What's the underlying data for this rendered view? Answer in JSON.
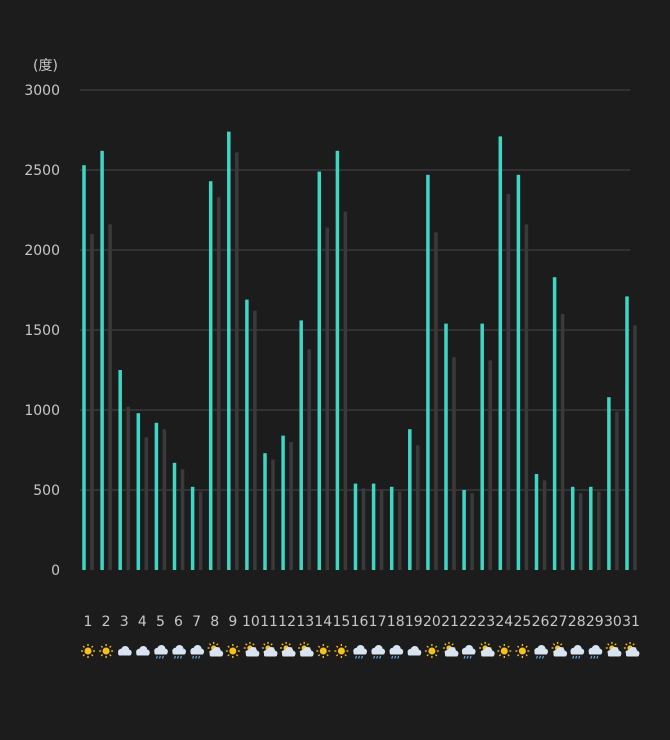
{
  "chart_data": {
    "type": "bar",
    "y_unit": "(度)",
    "ylim": [
      0,
      3000
    ],
    "y_ticks": [
      0,
      500,
      1000,
      1500,
      2000,
      2500,
      3000
    ],
    "grid": true,
    "categories": [
      "1",
      "2",
      "3",
      "4",
      "5",
      "6",
      "7",
      "8",
      "9",
      "10",
      "11",
      "12",
      "13",
      "14",
      "15",
      "16",
      "17",
      "18",
      "19",
      "20",
      "21",
      "22",
      "23",
      "24",
      "25",
      "26",
      "27",
      "28",
      "29",
      "30",
      "31"
    ],
    "series": [
      {
        "color": "#3ed6c4",
        "values": [
          2530,
          2620,
          1250,
          980,
          920,
          670,
          520,
          2430,
          2740,
          1690,
          730,
          840,
          1560,
          2490,
          2620,
          540,
          540,
          520,
          880,
          2470,
          1540,
          500,
          1540,
          2710,
          2470,
          600,
          1830,
          520,
          520,
          1080,
          1710
        ]
      },
      {
        "color": "#3a3a3a",
        "values": [
          2100,
          2160,
          1020,
          830,
          880,
          630,
          490,
          2330,
          2610,
          1620,
          690,
          800,
          1380,
          2140,
          2240,
          510,
          500,
          490,
          780,
          2110,
          1330,
          480,
          1310,
          2350,
          2160,
          560,
          1600,
          480,
          490,
          990,
          1530
        ]
      }
    ],
    "weather_icons": [
      "sun",
      "sun",
      "cloud",
      "cloud",
      "rain",
      "rain",
      "rain",
      "sun-cloud",
      "sun",
      "sun-cloud",
      "sun-cloud",
      "sun-cloud",
      "sun-cloud",
      "sun",
      "sun",
      "rain",
      "rain",
      "rain",
      "cloud",
      "sun",
      "sun-cloud",
      "rain",
      "sun-cloud",
      "sun",
      "sun",
      "rain",
      "sun-cloud",
      "rain",
      "rain",
      "sun-cloud",
      "sun-cloud"
    ]
  },
  "colors": {
    "background": "#1c1c1c",
    "grid": "#3a3a3a",
    "text": "#c8c8c8",
    "sun": "#f7c21b",
    "cloud": "#d8e4f2",
    "rain": "#6aa6e0"
  }
}
